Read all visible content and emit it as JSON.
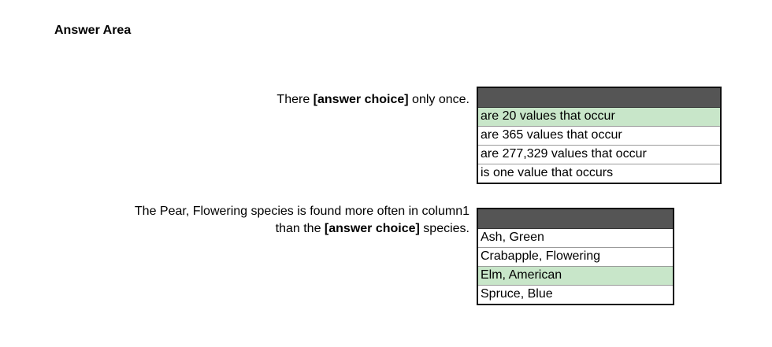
{
  "title": "Answer Area",
  "q1": {
    "prompt_before": "There ",
    "prompt_choice": "[answer choice]",
    "prompt_after": " only once.",
    "options": [
      {
        "label": "are 20 values that occur",
        "selected": true
      },
      {
        "label": "are 365 values that occur",
        "selected": false
      },
      {
        "label": "are 277,329 values that occur",
        "selected": false
      },
      {
        "label": "is one value that occurs",
        "selected": false
      }
    ]
  },
  "q2": {
    "prompt_line1": "The Pear, Flowering species is found more often in column1",
    "prompt_line2_before": "than the ",
    "prompt_choice": "[answer choice]",
    "prompt_line2_after": " species.",
    "options": [
      {
        "label": "Ash, Green",
        "selected": false
      },
      {
        "label": "Crabapple, Flowering",
        "selected": false
      },
      {
        "label": "Elm, American",
        "selected": true
      },
      {
        "label": "Spruce, Blue",
        "selected": false
      }
    ]
  },
  "colors": {
    "header": "#555555",
    "selected": "#c8e6c9"
  }
}
